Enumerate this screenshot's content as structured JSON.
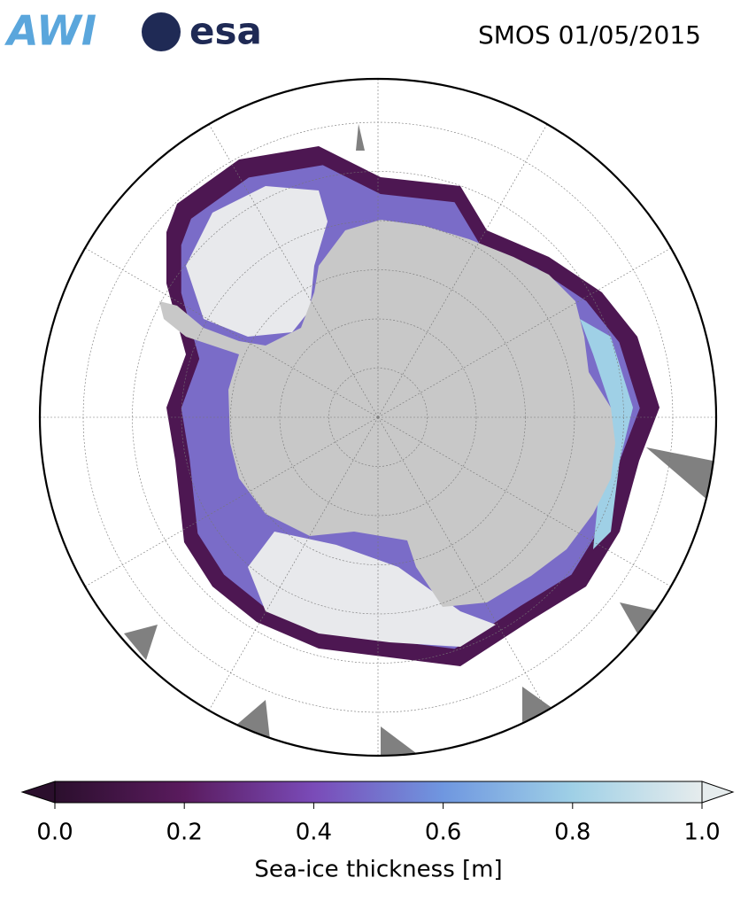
{
  "logos": {
    "awi": "AWI",
    "esa": "esa"
  },
  "title": "SMOS 01/05/2015",
  "colorbar": {
    "label": "Sea-ice thickness [m]",
    "lim": [
      0,
      1
    ],
    "ticks": [
      {
        "value": 0,
        "label": "0.0"
      },
      {
        "value": 0.2,
        "label": "0.2"
      },
      {
        "value": 0.4,
        "label": "0.4"
      },
      {
        "value": 0.6,
        "label": "0.6"
      },
      {
        "value": 0.8,
        "label": "0.8"
      },
      {
        "value": 1,
        "label": "1.0"
      }
    ],
    "colormap": [
      "#2b0f2d",
      "#5a1b5e",
      "#7a4bb8",
      "#6f97e0",
      "#9fd0e6",
      "#e6eced"
    ],
    "extend": "both"
  }
}
